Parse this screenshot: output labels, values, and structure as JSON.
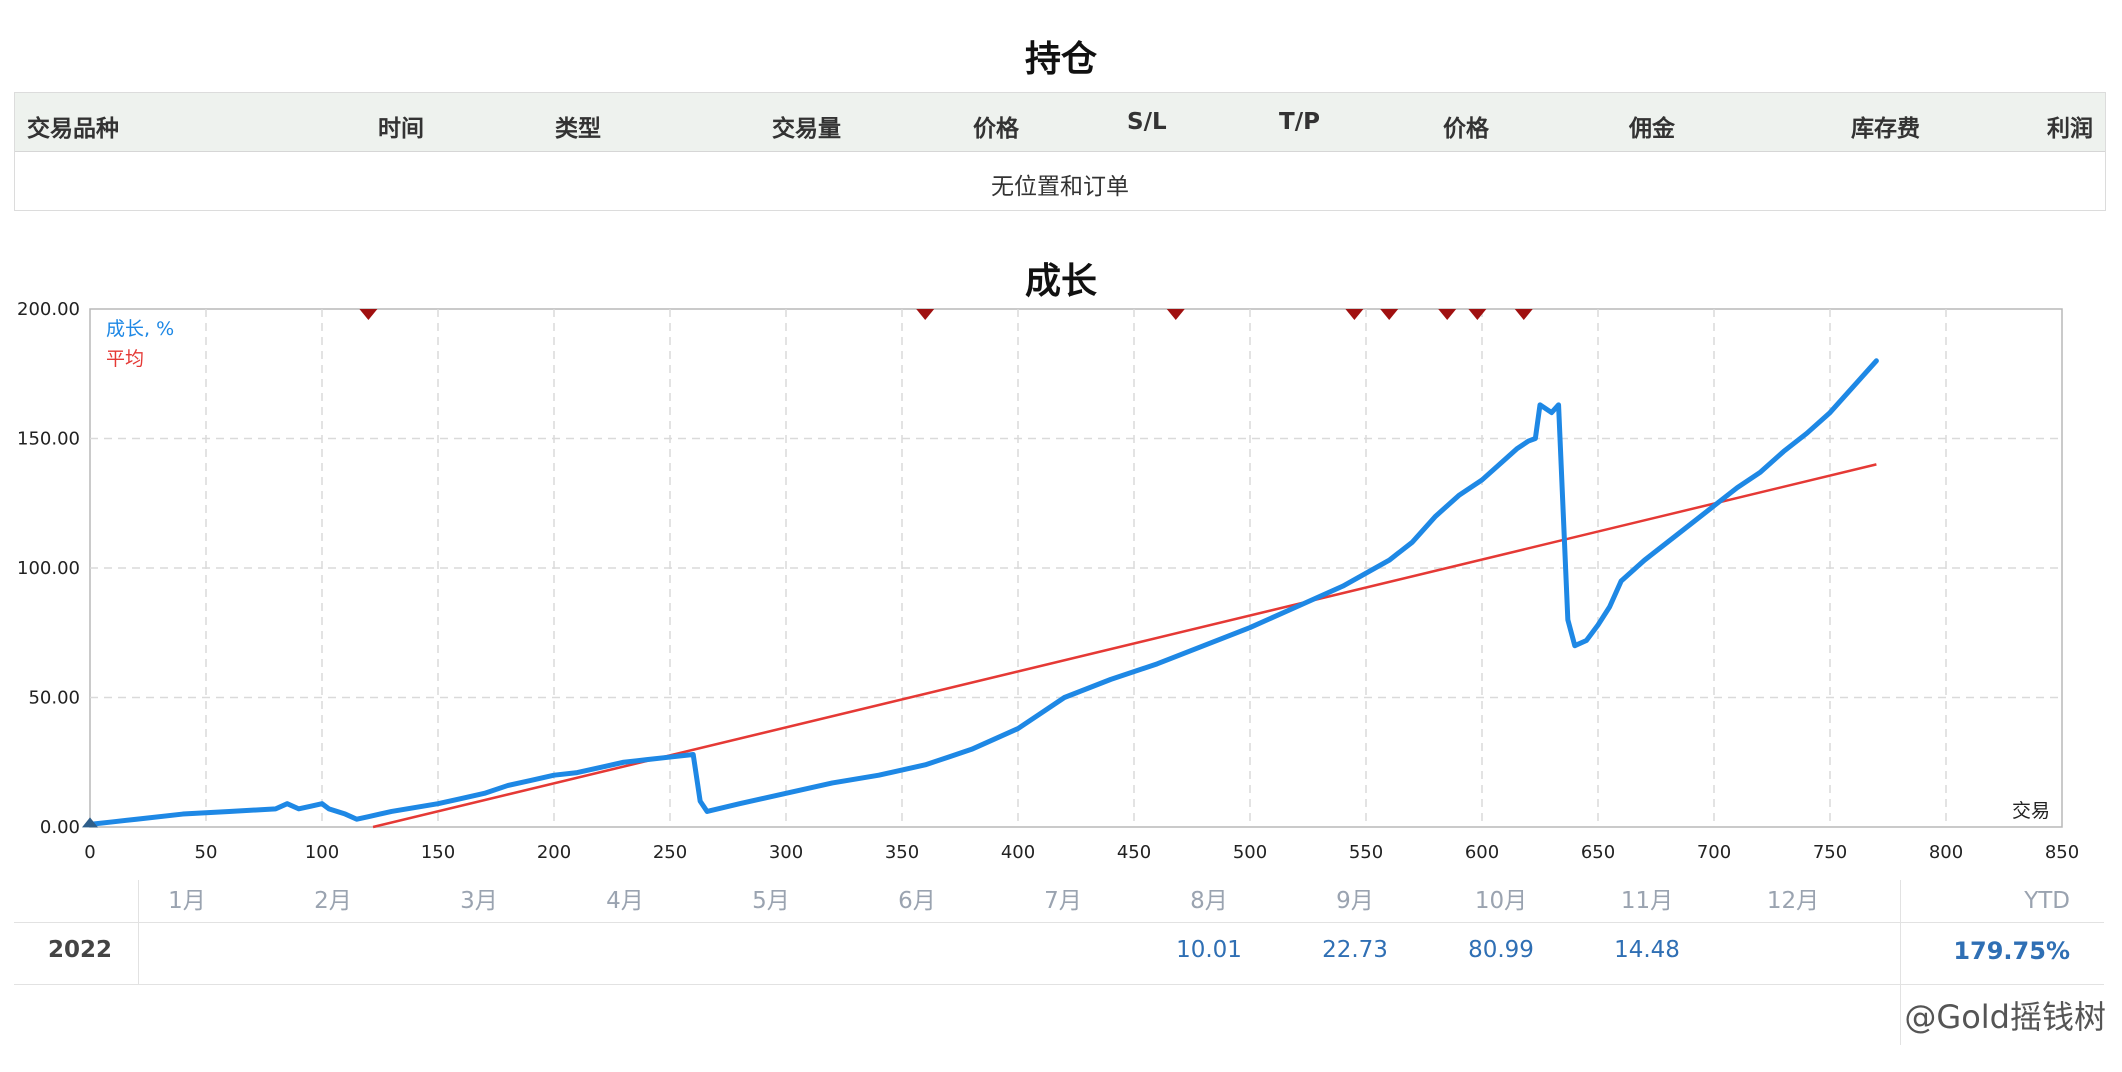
{
  "positions": {
    "title": "持仓",
    "columns": [
      "交易品种",
      "时间",
      "类型",
      "交易量",
      "价格",
      "S/L",
      "T/P",
      "价格",
      "佣金",
      "库存费",
      "利润"
    ],
    "empty_message": "无位置和订单"
  },
  "growth": {
    "title": "成长"
  },
  "chart_data": {
    "type": "line",
    "title": "成长",
    "xlabel": "交易",
    "ylabel": "",
    "xlim": [
      0,
      850
    ],
    "ylim": [
      0,
      200
    ],
    "x_ticks": [
      0,
      50,
      100,
      150,
      200,
      250,
      300,
      350,
      400,
      450,
      500,
      550,
      600,
      650,
      700,
      750,
      800,
      850
    ],
    "y_ticks": [
      "0.00",
      "50.00",
      "100.00",
      "150.00",
      "200.00"
    ],
    "grid": true,
    "legend_position": "top-left",
    "colors": {
      "growth": "#1e88e5",
      "average": "#e53935",
      "marker": "#a01010"
    },
    "series": [
      {
        "name": "成长, %",
        "x": [
          0,
          10,
          20,
          40,
          60,
          80,
          85,
          90,
          95,
          100,
          103,
          110,
          115,
          120,
          130,
          150,
          160,
          170,
          180,
          190,
          200,
          210,
          220,
          230,
          240,
          250,
          260,
          263,
          266,
          280,
          300,
          320,
          340,
          360,
          370,
          380,
          390,
          400,
          410,
          420,
          440,
          460,
          480,
          500,
          520,
          540,
          550,
          560,
          570,
          580,
          590,
          600,
          610,
          615,
          620,
          623,
          625,
          630,
          633,
          637,
          640,
          645,
          650,
          655,
          660,
          670,
          680,
          690,
          700,
          710,
          720,
          730,
          740,
          750,
          760,
          770
        ],
        "values": [
          1,
          2,
          3,
          5,
          6,
          7,
          9,
          7,
          8,
          9,
          7,
          5,
          3,
          4,
          6,
          9,
          11,
          13,
          16,
          18,
          20,
          21,
          23,
          25,
          26,
          27,
          28,
          10,
          6,
          9,
          13,
          17,
          20,
          24,
          27,
          30,
          34,
          38,
          44,
          50,
          57,
          63,
          70,
          77,
          85,
          93,
          98,
          103,
          110,
          120,
          128,
          134,
          142,
          146,
          149,
          150,
          163,
          160,
          163,
          80,
          70,
          72,
          78,
          85,
          95,
          103,
          110,
          117,
          124,
          131,
          137,
          145,
          152,
          160,
          170,
          180
        ]
      },
      {
        "name": "平均",
        "x": [
          122,
          770
        ],
        "values": [
          0,
          140
        ]
      }
    ],
    "markers_x": [
      120,
      360,
      468,
      545,
      560,
      585,
      598,
      618
    ]
  },
  "monthly": {
    "months": [
      "1月",
      "2月",
      "3月",
      "4月",
      "5月",
      "6月",
      "7月",
      "8月",
      "9月",
      "10月",
      "11月",
      "12月"
    ],
    "ytd_label": "YTD",
    "year": "2022",
    "values": [
      "",
      "",
      "",
      "",
      "",
      "",
      "",
      "10.01",
      "22.73",
      "80.99",
      "14.48",
      ""
    ],
    "ytd": "179.75%"
  },
  "watermark": "@Gold摇钱树"
}
